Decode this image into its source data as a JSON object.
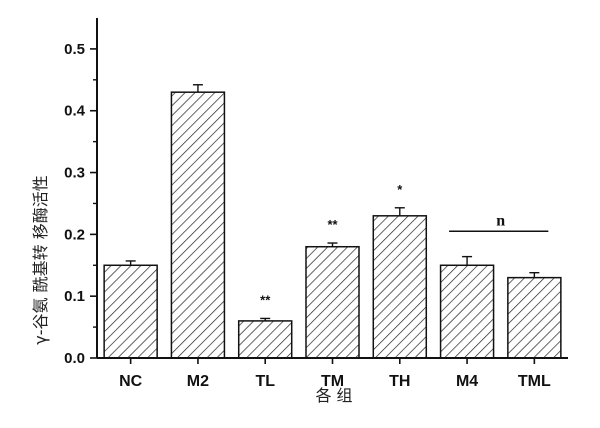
{
  "chart_data": {
    "type": "bar",
    "categories": [
      "NC",
      "M2",
      "TL",
      "TM",
      "TH",
      "M4",
      "TML"
    ],
    "values": [
      0.15,
      0.43,
      0.06,
      0.18,
      0.23,
      0.15,
      0.13
    ],
    "errors": [
      0.007,
      0.012,
      0.004,
      0.006,
      0.013,
      0.014,
      0.008
    ],
    "significance": [
      "",
      "",
      "**",
      "**",
      "*",
      "",
      ""
    ],
    "group_bracket": {
      "from": "M4",
      "to": "TML",
      "label": "n"
    },
    "xlabel": "各 组",
    "ylabel": "γ-谷氨 酰基转 移酶活性",
    "ylim": [
      0.0,
      0.55
    ],
    "yticks": [
      "0.0",
      "0.1",
      "0.2",
      "0.3",
      "0.4",
      "0.5"
    ],
    "bar_fill": "diagonal-hatch",
    "grid": false,
    "legend": "none"
  }
}
